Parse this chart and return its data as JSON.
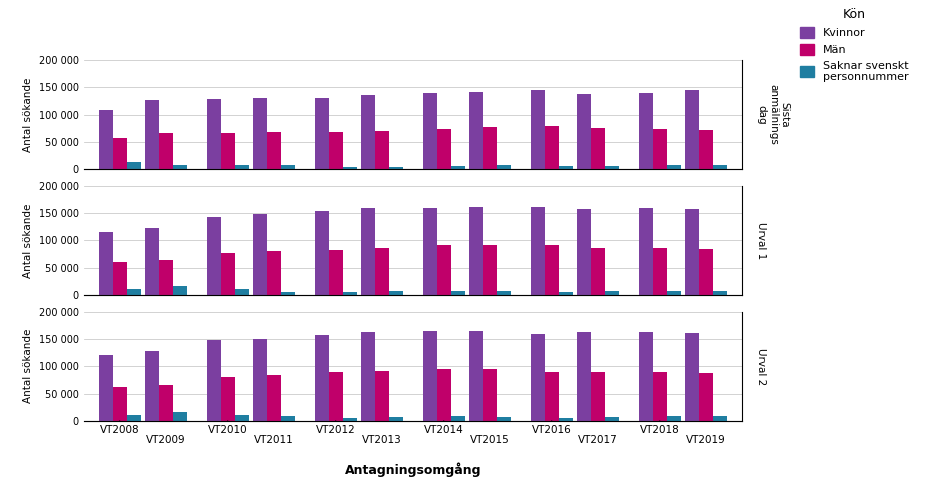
{
  "years": [
    "VT2008",
    "VT2009",
    "VT2010",
    "VT2011",
    "VT2012",
    "VT2013",
    "VT2014",
    "VT2015",
    "VT2016",
    "VT2017",
    "VT2018",
    "VT2019"
  ],
  "panels": [
    {
      "label": "Sista\nanmälnings\ndag",
      "kvinnor": [
        108000,
        127000,
        128000,
        130000,
        130000,
        136000,
        140000,
        142000,
        145000,
        138000,
        140000,
        145000
      ],
      "man": [
        57000,
        67000,
        67000,
        68000,
        68000,
        71000,
        74000,
        77000,
        80000,
        75000,
        74000,
        73000
      ],
      "saknar": [
        14000,
        8000,
        9000,
        9000,
        4000,
        5000,
        7000,
        8000,
        7000,
        7000,
        8000,
        9000
      ]
    },
    {
      "label": "Urval 1",
      "kvinnor": [
        116000,
        122000,
        143000,
        148000,
        154000,
        160000,
        160000,
        161000,
        162000,
        157000,
        160000,
        158000
      ],
      "man": [
        61000,
        65000,
        78000,
        81000,
        83000,
        87000,
        91000,
        92000,
        91000,
        87000,
        86000,
        85000
      ],
      "saknar": [
        11000,
        16000,
        11000,
        6000,
        5000,
        7000,
        8000,
        7000,
        6000,
        7000,
        8000,
        8000
      ]
    },
    {
      "label": "Urval 2",
      "kvinnor": [
        121000,
        127000,
        148000,
        150000,
        157000,
        162000,
        165000,
        164000,
        159000,
        163000,
        162000,
        161000
      ],
      "man": [
        62000,
        66000,
        81000,
        84000,
        89000,
        92000,
        95000,
        94000,
        89000,
        90000,
        89000,
        88000
      ],
      "saknar": [
        11000,
        16000,
        11000,
        8000,
        6000,
        7000,
        8000,
        7000,
        6000,
        7000,
        8000,
        8000
      ]
    }
  ],
  "colors": {
    "kvinnor": "#7B3FA0",
    "man": "#C0006A",
    "saknar": "#1F7EA1"
  },
  "ylabel": "Antal sökande",
  "xlabel": "Antagningsomgång",
  "legend_title": "Kön",
  "legend_labels": [
    "Kvinnor",
    "Män",
    "Saknar svenskt\npersonnummer"
  ],
  "ylim": [
    0,
    200000
  ],
  "yticks": [
    0,
    50000,
    100000,
    150000,
    200000
  ],
  "ytick_labels": [
    "0",
    "50 000",
    "100 000",
    "150 000",
    "200 000"
  ],
  "background_color": "#ffffff",
  "grid_color": "#c0c0c0"
}
